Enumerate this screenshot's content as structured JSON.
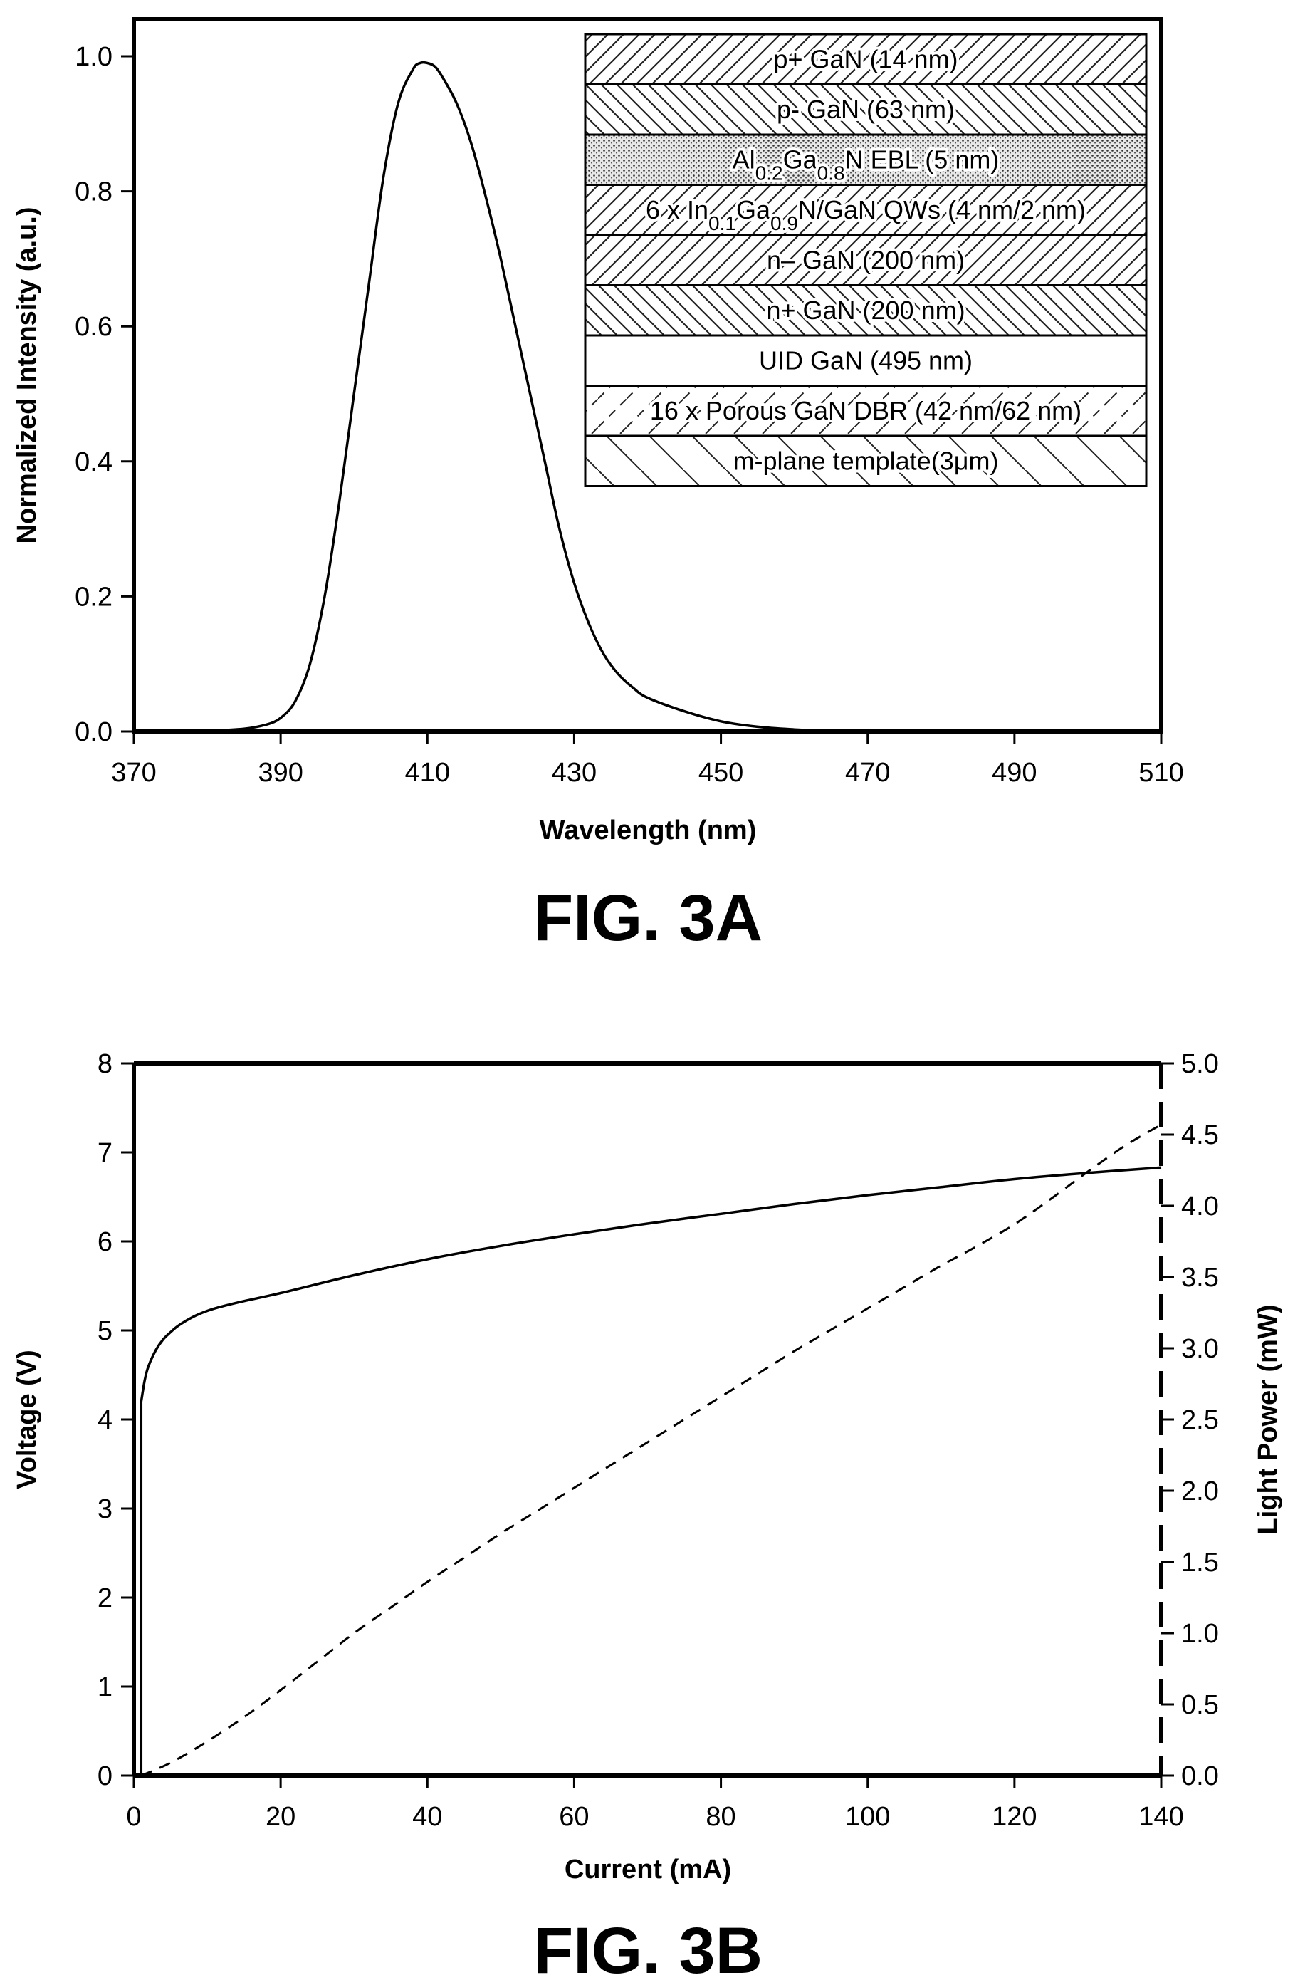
{
  "chart_data": [
    {
      "type": "line",
      "figure_label": "FIG. 3A",
      "xlabel": "Wavelength (nm)",
      "ylabel": "Normalized Intensity (a.u.)",
      "xlim": [
        370,
        510
      ],
      "ylim": [
        0.0,
        1.0
      ],
      "xticks": [
        "370",
        "390",
        "410",
        "430",
        "450",
        "470",
        "490",
        "510"
      ],
      "yticks": [
        "0.0",
        "0.2",
        "0.4",
        "0.6",
        "0.8",
        "1.0"
      ],
      "grid": false,
      "series": [
        {
          "style": "solid",
          "x": [
            375,
            380,
            385,
            388,
            390,
            392,
            394,
            396,
            398,
            400,
            402,
            404,
            406,
            408,
            409,
            410,
            411,
            412,
            414,
            416,
            418,
            420,
            422,
            424,
            426,
            428,
            430,
            432,
            434,
            436,
            438,
            440,
            445,
            450,
            455,
            460,
            465,
            470,
            480,
            490,
            510
          ],
          "y": [
            0.0,
            0.001,
            0.004,
            0.01,
            0.02,
            0.045,
            0.1,
            0.2,
            0.34,
            0.5,
            0.66,
            0.82,
            0.93,
            0.98,
            0.99,
            0.99,
            0.985,
            0.97,
            0.93,
            0.87,
            0.79,
            0.7,
            0.6,
            0.5,
            0.4,
            0.3,
            0.22,
            0.16,
            0.115,
            0.085,
            0.065,
            0.05,
            0.03,
            0.015,
            0.007,
            0.003,
            0.001,
            0.0,
            0.0,
            0.0,
            0.0
          ]
        }
      ],
      "inset_layers": [
        {
          "label_parts": [
            {
              "t": "p+ GaN (14 nm)"
            }
          ],
          "pattern": "hatch-right"
        },
        {
          "label_parts": [
            {
              "t": "p- GaN (63 nm)"
            }
          ],
          "pattern": "hatch-left"
        },
        {
          "label_parts": [
            {
              "t": "Al"
            },
            {
              "t": "0.2",
              "sub": true
            },
            {
              "t": "Ga"
            },
            {
              "t": "0.8",
              "sub": true
            },
            {
              "t": "N EBL (5 nm)"
            }
          ],
          "pattern": "dots"
        },
        {
          "label_parts": [
            {
              "t": "6 x In"
            },
            {
              "t": "0.1",
              "sub": true
            },
            {
              "t": "Ga"
            },
            {
              "t": "0.9",
              "sub": true
            },
            {
              "t": "N/GaN QWs (4 nm/2 nm)"
            }
          ],
          "pattern": "hatch-right"
        },
        {
          "label_parts": [
            {
              "t": "n– GaN (200 nm)"
            }
          ],
          "pattern": "hatch-right"
        },
        {
          "label_parts": [
            {
              "t": "n+ GaN (200 nm)"
            }
          ],
          "pattern": "hatch-left"
        },
        {
          "label_parts": [
            {
              "t": "UID GaN (495 nm)"
            }
          ],
          "pattern": "none"
        },
        {
          "label_parts": [
            {
              "t": "16 x Porous GaN DBR (42 nm/62 nm)"
            }
          ],
          "pattern": "dashed-right"
        },
        {
          "label_parts": [
            {
              "t": "m-plane template(3μm)"
            }
          ],
          "pattern": "sparse-left"
        }
      ]
    },
    {
      "type": "line",
      "figure_label": "FIG. 3B",
      "xlabel": "Current (mA)",
      "ylabel": "Voltage (V)",
      "y2label": "Light Power (mW)",
      "xlim": [
        0,
        140
      ],
      "ylim": [
        0,
        8
      ],
      "y2lim": [
        0.0,
        5.0
      ],
      "xticks": [
        "0",
        "20",
        "40",
        "60",
        "80",
        "100",
        "120",
        "140"
      ],
      "yticks": [
        "0",
        "1",
        "2",
        "3",
        "4",
        "5",
        "6",
        "7",
        "8"
      ],
      "y2ticks": [
        "0.0",
        "0.5",
        "1.0",
        "1.5",
        "2.0",
        "2.5",
        "3.0",
        "3.5",
        "4.0",
        "4.5",
        "5.0"
      ],
      "grid": false,
      "series": [
        {
          "style": "solid",
          "axis": "left",
          "x": [
            1.0,
            1.0,
            1.5,
            2,
            3,
            4,
            5,
            6,
            8,
            10,
            12,
            15,
            20,
            30,
            40,
            50,
            60,
            70,
            80,
            90,
            100,
            110,
            120,
            130,
            140
          ],
          "y": [
            0,
            4.2,
            4.45,
            4.6,
            4.78,
            4.9,
            4.98,
            5.05,
            5.15,
            5.22,
            5.27,
            5.33,
            5.42,
            5.62,
            5.8,
            5.95,
            6.08,
            6.2,
            6.31,
            6.42,
            6.52,
            6.61,
            6.7,
            6.77,
            6.83
          ]
        },
        {
          "style": "dashed",
          "axis": "right",
          "x": [
            1,
            5,
            10,
            15,
            20,
            25,
            30,
            35,
            40,
            45,
            50,
            55,
            60,
            65,
            70,
            75,
            80,
            85,
            90,
            95,
            100,
            105,
            110,
            115,
            120,
            125,
            130,
            135,
            140
          ],
          "y": [
            0.0,
            0.09,
            0.24,
            0.41,
            0.6,
            0.8,
            1.0,
            1.18,
            1.36,
            1.53,
            1.7,
            1.86,
            2.02,
            2.18,
            2.34,
            2.5,
            2.66,
            2.82,
            2.98,
            3.13,
            3.28,
            3.43,
            3.58,
            3.72,
            3.87,
            4.05,
            4.24,
            4.42,
            4.57
          ]
        }
      ]
    }
  ]
}
